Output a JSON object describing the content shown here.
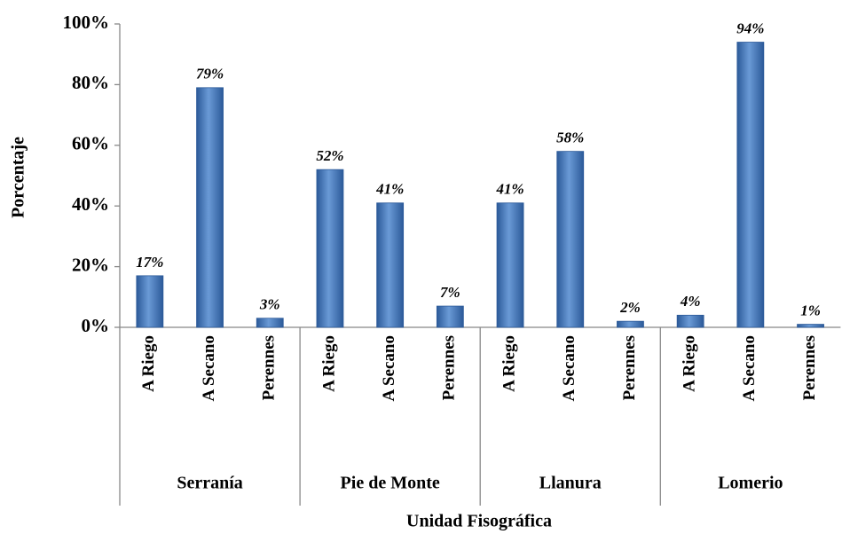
{
  "chart_data": {
    "type": "bar",
    "y_label": "Porcentaje",
    "x_label": "Unidad Fisográfica",
    "color": "#4f81bd",
    "ylim": [
      0,
      100
    ],
    "yticks": [
      {
        "value": 0,
        "label": "0%"
      },
      {
        "value": 20,
        "label": "20%"
      },
      {
        "value": 40,
        "label": "40%"
      },
      {
        "value": 60,
        "label": "60%"
      },
      {
        "value": 80,
        "label": "80%"
      },
      {
        "value": 100,
        "label": "100%"
      }
    ],
    "groups": [
      {
        "name": "Serranía",
        "categories": [
          "A Riego",
          "A Secano",
          "Perennes"
        ],
        "values": [
          17,
          79,
          3
        ],
        "value_labels": [
          "17%",
          "79%",
          "3%"
        ]
      },
      {
        "name": "Pie de Monte",
        "categories": [
          "A Riego",
          "A Secano",
          "Perennes"
        ],
        "values": [
          52,
          41,
          7
        ],
        "value_labels": [
          "52%",
          "41%",
          "7%"
        ]
      },
      {
        "name": "Llanura",
        "categories": [
          "A Riego",
          "A Secano",
          "Perennes"
        ],
        "values": [
          41,
          58,
          2
        ],
        "value_labels": [
          "41%",
          "58%",
          "2%"
        ]
      },
      {
        "name": "Lomerio",
        "categories": [
          "A Riego",
          "A Secano",
          "Perennes"
        ],
        "values": [
          4,
          94,
          1
        ],
        "value_labels": [
          "4%",
          "94%",
          "1%"
        ]
      }
    ]
  }
}
